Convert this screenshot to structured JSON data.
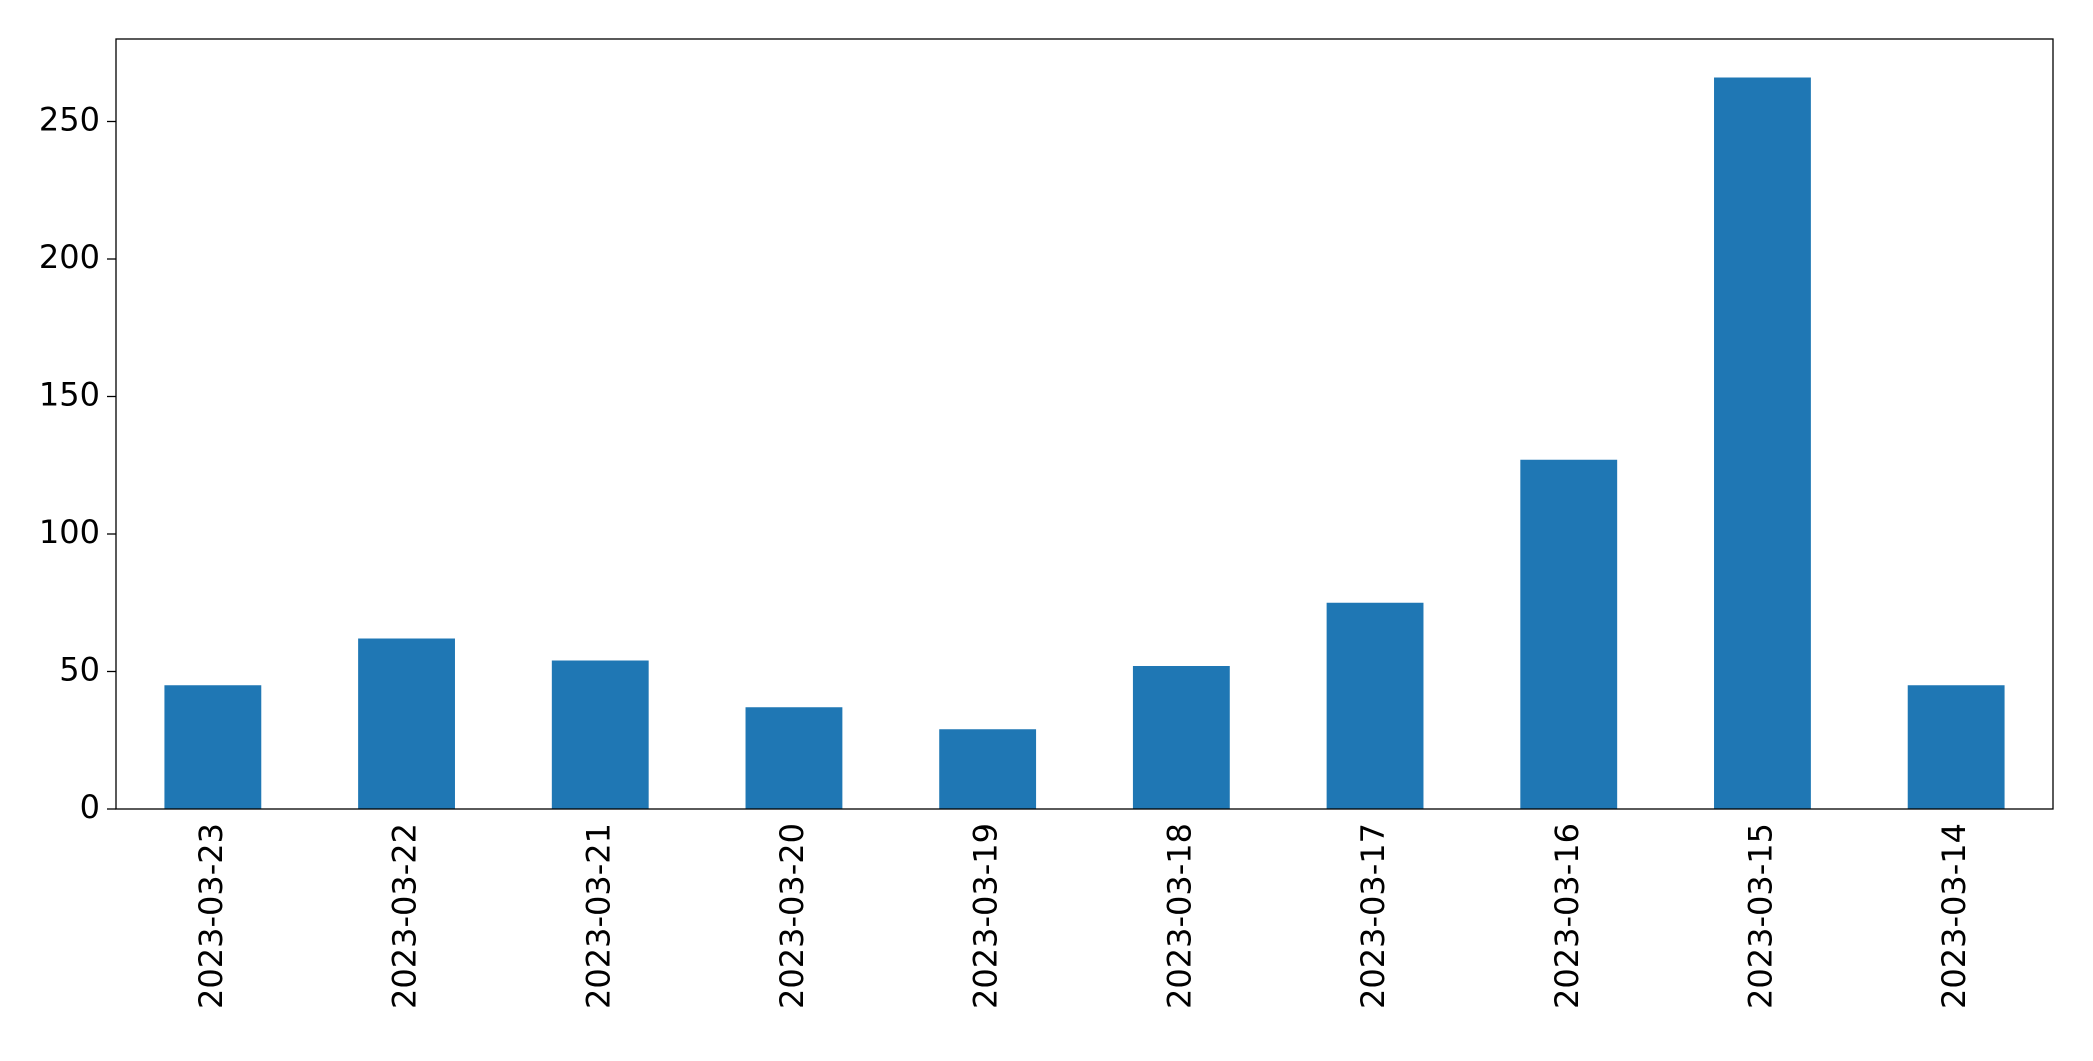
{
  "chart_data": {
    "type": "bar",
    "categories": [
      "2023-03-23",
      "2023-03-22",
      "2023-03-21",
      "2023-03-20",
      "2023-03-19",
      "2023-03-18",
      "2023-03-17",
      "2023-03-16",
      "2023-03-15",
      "2023-03-14"
    ],
    "values": [
      45,
      62,
      54,
      37,
      29,
      52,
      75,
      127,
      266,
      45
    ],
    "color": "#1f77b4",
    "ylim": [
      0,
      280
    ],
    "yticks": [
      0,
      50,
      100,
      150,
      200,
      250
    ],
    "grid": false
  }
}
